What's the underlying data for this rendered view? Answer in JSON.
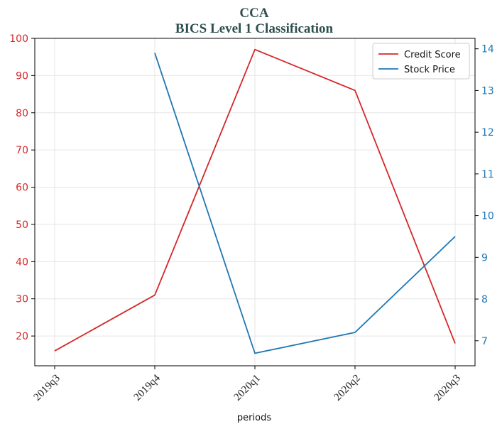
{
  "chart_data": {
    "type": "line",
    "title": "CCA",
    "subtitle": "BICS Level 1 Classification",
    "xlabel": "periods",
    "categories": [
      "2019q3",
      "2019q4",
      "2020q1",
      "2020q2",
      "2020q3"
    ],
    "y_left": {
      "ylim": [
        12,
        100
      ],
      "ticks": [
        20,
        30,
        40,
        50,
        60,
        70,
        80,
        90,
        100
      ]
    },
    "y_right": {
      "ylim": [
        6.4,
        14.25
      ],
      "ticks": [
        7,
        8,
        9,
        10,
        11,
        12,
        13,
        14
      ]
    },
    "series": [
      {
        "name": "Credit Score",
        "axis": "left",
        "color": "#d62728",
        "values": [
          16,
          31,
          97,
          86,
          18
        ]
      },
      {
        "name": "Stock Price",
        "axis": "right",
        "color": "#1f77b4",
        "values": [
          null,
          13.9,
          6.7,
          7.2,
          9.5
        ]
      }
    ],
    "grid": true,
    "legend": "top-right",
    "colors": {
      "title": "#2f4f4f",
      "left_axis": "#d62728",
      "right_axis": "#1f77b4"
    }
  }
}
